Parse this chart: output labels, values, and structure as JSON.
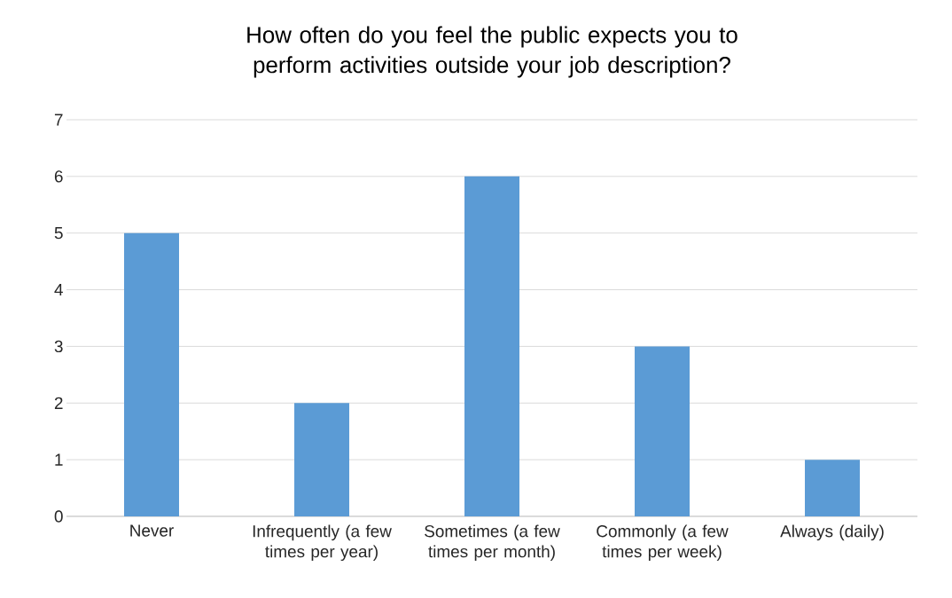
{
  "chart_data": {
    "type": "bar",
    "title": "How often do you feel the public expects you to perform activities outside your job description?",
    "categories": [
      "Never",
      "Infrequently (a few times per year)",
      "Sometimes (a few times per month)",
      "Commonly (a few times per week)",
      "Always (daily)"
    ],
    "values": [
      5,
      2,
      6,
      3,
      1
    ],
    "color": "#5b9bd5",
    "ylim": [
      0,
      7
    ],
    "yticks": [
      0,
      1,
      2,
      3,
      4,
      5,
      6,
      7
    ],
    "grid": "y"
  }
}
